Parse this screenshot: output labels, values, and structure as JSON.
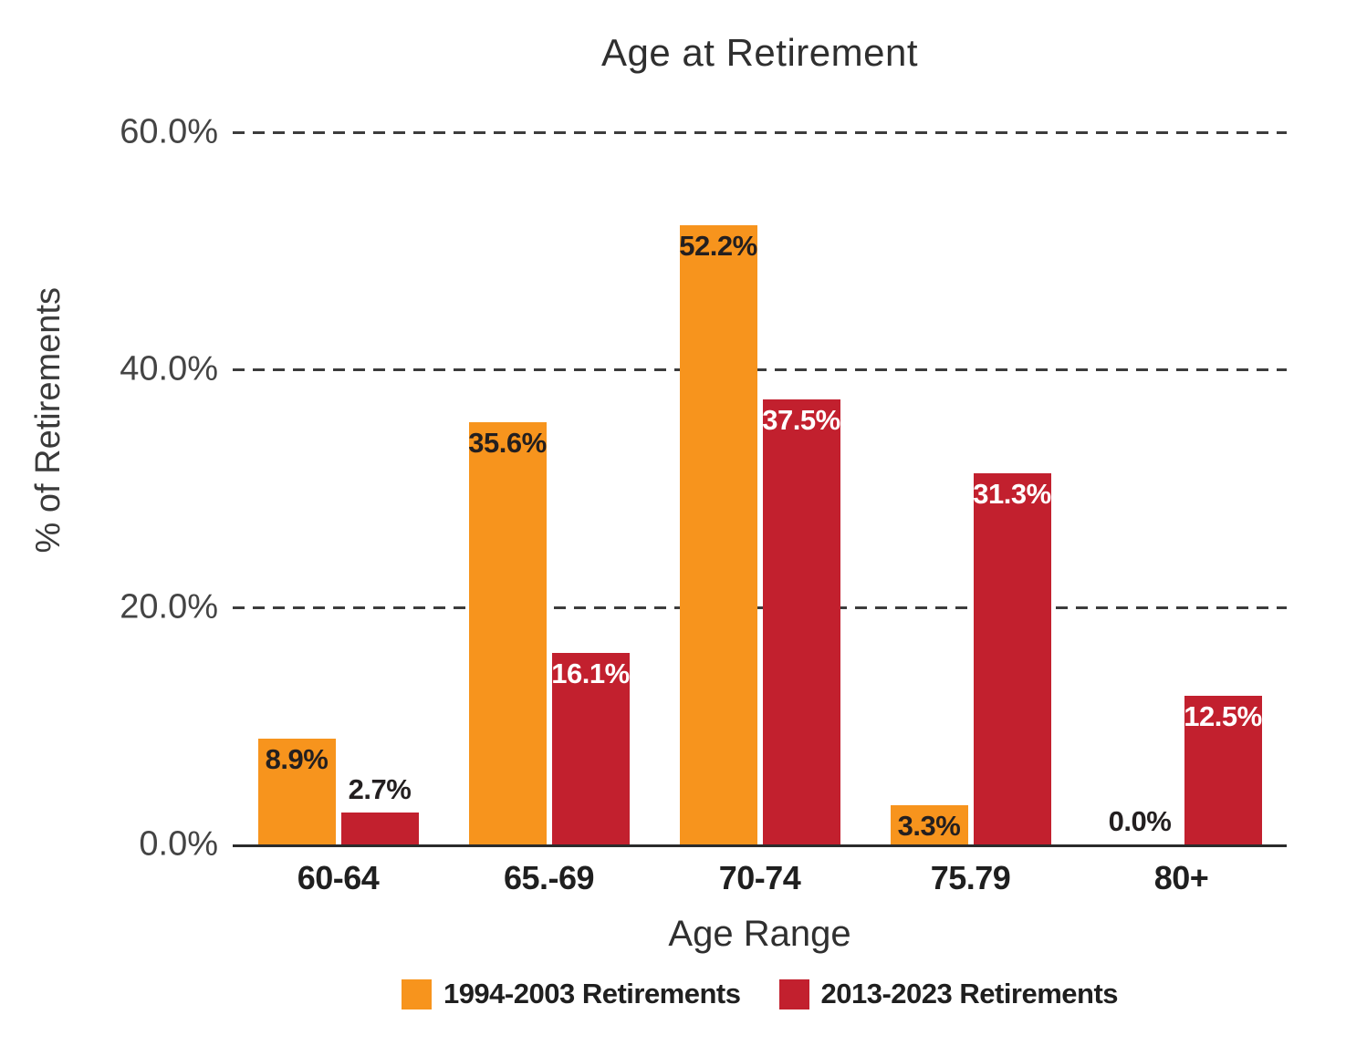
{
  "chart_data": {
    "type": "bar",
    "title": "Age at Retirement",
    "xlabel": "Age Range",
    "ylabel": "% of Retirements",
    "ylim": [
      0,
      60
    ],
    "yticks": [
      {
        "value": 60,
        "label": "60.0%"
      },
      {
        "value": 40,
        "label": "40.0%"
      },
      {
        "value": 20,
        "label": "20.0%"
      },
      {
        "value": 0,
        "label": "0.0%"
      }
    ],
    "grid": "horizontal-dashed",
    "legend_position": "bottom",
    "categories": [
      "60-64",
      "65.-69",
      "70-74",
      "75.79",
      "80+"
    ],
    "series": [
      {
        "name": "1994-2003 Retirements",
        "color": "#F7941D",
        "inside_label_color": "#231F20",
        "values": [
          8.9,
          35.6,
          52.2,
          3.3,
          0.0
        ],
        "labels": [
          "8.9%",
          "35.6%",
          "52.2%",
          "3.3%",
          "0.0%"
        ],
        "label_placement": [
          "inside",
          "inside",
          "inside",
          "inside",
          "above"
        ]
      },
      {
        "name": "2013-2023 Retirements",
        "color": "#C2202E",
        "inside_label_color": "#FFFFFF",
        "values": [
          2.7,
          16.1,
          37.5,
          31.3,
          12.5
        ],
        "labels": [
          "2.7%",
          "16.1%",
          "37.5%",
          "31.3%",
          "12.5%"
        ],
        "label_placement": [
          "above",
          "inside",
          "inside",
          "inside",
          "inside"
        ]
      }
    ],
    "outside_label_color": "#231F20"
  }
}
